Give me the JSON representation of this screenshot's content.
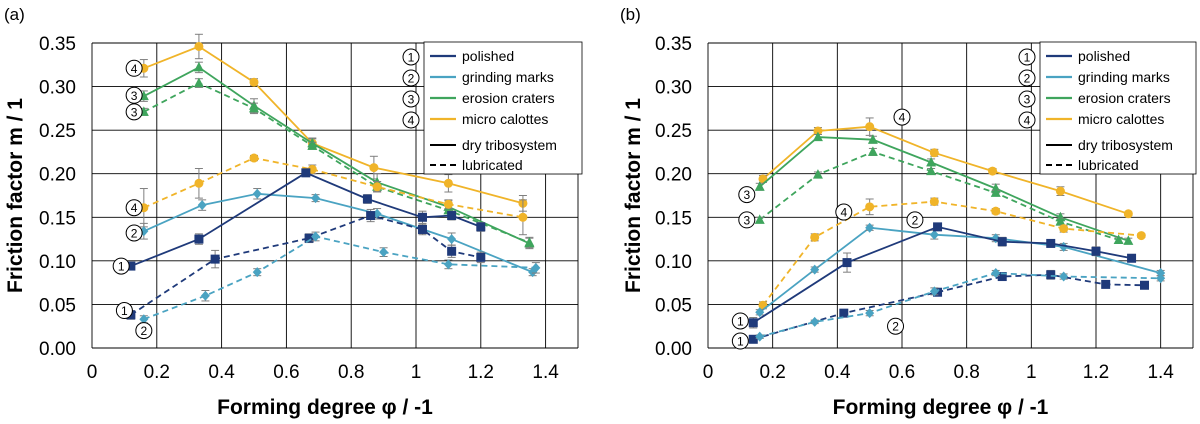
{
  "colors": {
    "polished": "#1f3a7a",
    "grinding": "#4aa3c2",
    "erosion": "#3fa55d",
    "calottes": "#f0b429",
    "grid": "#000000",
    "error": "#7f7f7f"
  },
  "chart_data": [
    {
      "type": "line",
      "panel_label": "(a)",
      "xlabel": "Forming degree φ / -1",
      "ylabel": "Friction factor m / 1",
      "xlim": [
        0,
        1.5
      ],
      "ylim": [
        0,
        0.35
      ],
      "xticks": [
        "0",
        "0.2",
        "0.4",
        "0.6",
        "0.8",
        "1",
        "1.2",
        "1.4"
      ],
      "yticks": [
        "0.00",
        "0.05",
        "0.10",
        "0.15",
        "0.20",
        "0.25",
        "0.30",
        "0.35"
      ],
      "legend": {
        "position": "top-right",
        "entries": [
          "polished",
          "grinding marks",
          "erosion craters",
          "micro calottes"
        ],
        "numbers": [
          "1",
          "2",
          "3",
          "4"
        ],
        "style_entries": [
          "dry tribosystem",
          "lubricated"
        ]
      },
      "series": [
        {
          "name": "micro calottes",
          "condition": "dry tribosystem",
          "color_key": "calottes",
          "marker": "circle",
          "x": [
            0.16,
            0.33,
            0.5,
            0.68,
            0.87,
            1.1,
            1.33
          ],
          "y": [
            0.321,
            0.346,
            0.305,
            0.235,
            0.207,
            0.189,
            0.166
          ],
          "err": [
            0.01,
            0.014,
            0.004,
            0.006,
            0.013,
            0.01,
            0.009
          ]
        },
        {
          "name": "erosion craters",
          "condition": "dry tribosystem",
          "color_key": "erosion",
          "marker": "triangle",
          "x": [
            0.16,
            0.33,
            0.5,
            0.68,
            0.88,
            1.1,
            1.35
          ],
          "y": [
            0.289,
            0.322,
            0.278,
            0.235,
            0.19,
            0.162,
            0.12
          ],
          "err": [
            0.006,
            0.006,
            0.008,
            0.005,
            0.01,
            0.007,
            0.006
          ]
        },
        {
          "name": "erosion craters",
          "condition": "lubricated",
          "color_key": "erosion",
          "marker": "triangle",
          "x": [
            0.16,
            0.33,
            0.5,
            0.68,
            0.88,
            1.1,
            1.35
          ],
          "y": [
            0.271,
            0.304,
            0.275,
            0.232,
            0.185,
            0.158,
            0.121
          ],
          "err": [
            0.004,
            0.005,
            0.006,
            0.004,
            0.006,
            0.006,
            0.006
          ]
        },
        {
          "name": "micro calottes",
          "condition": "lubricated",
          "color_key": "calottes",
          "marker": "circle",
          "x": [
            0.16,
            0.33,
            0.5,
            0.68,
            0.88,
            1.1,
            1.33
          ],
          "y": [
            0.161,
            0.189,
            0.218,
            0.205,
            0.185,
            0.165,
            0.15
          ],
          "err": [
            0.022,
            0.017,
            0.003,
            0.005,
            0.006,
            0.005,
            0.02
          ]
        },
        {
          "name": "grinding marks",
          "condition": "dry tribosystem",
          "color_key": "grinding",
          "marker": "diamond",
          "x": [
            0.16,
            0.34,
            0.51,
            0.69,
            0.88,
            1.11,
            1.36
          ],
          "y": [
            0.134,
            0.164,
            0.177,
            0.172,
            0.154,
            0.125,
            0.087
          ],
          "err": [
            0.009,
            0.006,
            0.006,
            0.004,
            0.006,
            0.007,
            0.004
          ]
        },
        {
          "name": "polished",
          "condition": "dry tribosystem",
          "color_key": "polished",
          "marker": "square",
          "x": [
            0.12,
            0.33,
            0.66,
            0.85,
            1.02,
            1.11,
            1.2
          ],
          "y": [
            0.094,
            0.125,
            0.201,
            0.171,
            0.15,
            0.152,
            0.139
          ],
          "err": [
            0.004,
            0.006,
            0.003,
            0.005,
            0.007,
            0.005,
            0.005
          ]
        },
        {
          "name": "polished",
          "condition": "lubricated",
          "color_key": "polished",
          "marker": "square",
          "x": [
            0.12,
            0.38,
            0.67,
            0.86,
            1.02,
            1.11,
            1.2
          ],
          "y": [
            0.038,
            0.102,
            0.126,
            0.152,
            0.136,
            0.111,
            0.104
          ],
          "err": [
            0.005,
            0.01,
            0.005,
            0.007,
            0.006,
            0.007,
            0.006
          ]
        },
        {
          "name": "grinding marks",
          "condition": "lubricated",
          "color_key": "grinding",
          "marker": "diamond",
          "x": [
            0.16,
            0.35,
            0.51,
            0.69,
            0.9,
            1.1,
            1.37
          ],
          "y": [
            0.033,
            0.06,
            0.087,
            0.128,
            0.11,
            0.096,
            0.092
          ],
          "err": [
            0.004,
            0.006,
            0.004,
            0.005,
            0.005,
            0.005,
            0.006
          ]
        }
      ],
      "annotations": [
        {
          "text": "4",
          "x": 0.13,
          "y": 0.321
        },
        {
          "text": "3",
          "x": 0.13,
          "y": 0.29
        },
        {
          "text": "3",
          "x": 0.13,
          "y": 0.271
        },
        {
          "text": "4",
          "x": 0.13,
          "y": 0.161
        },
        {
          "text": "2",
          "x": 0.13,
          "y": 0.132
        },
        {
          "text": "1",
          "x": 0.09,
          "y": 0.094
        },
        {
          "text": "1",
          "x": 0.1,
          "y": 0.043
        },
        {
          "text": "2",
          "x": 0.16,
          "y": 0.02
        }
      ]
    },
    {
      "type": "line",
      "panel_label": "(b)",
      "xlabel": "Forming degree φ / -1",
      "ylabel": "Friction factor m / 1",
      "xlim": [
        0,
        1.5
      ],
      "ylim": [
        0,
        0.35
      ],
      "xticks": [
        "0",
        "0.2",
        "0.4",
        "0.6",
        "0.8",
        "1",
        "1.2",
        "1.4"
      ],
      "yticks": [
        "0.00",
        "0.05",
        "0.10",
        "0.15",
        "0.20",
        "0.25",
        "0.30",
        "0.35"
      ],
      "legend": {
        "position": "top-right",
        "entries": [
          "polished",
          "grinding marks",
          "erosion craters",
          "micro calottes"
        ],
        "numbers": [
          "1",
          "2",
          "3",
          "4"
        ],
        "style_entries": [
          "dry tribosystem",
          "lubricated"
        ]
      },
      "series": [
        {
          "name": "micro calottes",
          "condition": "dry tribosystem",
          "color_key": "calottes",
          "marker": "circle",
          "x": [
            0.17,
            0.34,
            0.5,
            0.7,
            0.88,
            1.09,
            1.3
          ],
          "y": [
            0.194,
            0.249,
            0.254,
            0.224,
            0.203,
            0.18,
            0.154
          ],
          "err": [
            0.004,
            0.004,
            0.01,
            0.004,
            0.003,
            0.005,
            0.002
          ]
        },
        {
          "name": "erosion craters",
          "condition": "dry tribosystem",
          "color_key": "erosion",
          "marker": "triangle",
          "x": [
            0.16,
            0.34,
            0.51,
            0.69,
            0.89,
            1.09,
            1.3
          ],
          "y": [
            0.185,
            0.242,
            0.239,
            0.213,
            0.183,
            0.15,
            0.123
          ],
          "err": [
            0.004,
            0.003,
            0.004,
            0.004,
            0.005,
            0.004,
            0.003
          ]
        },
        {
          "name": "erosion craters",
          "condition": "lubricated",
          "color_key": "erosion",
          "marker": "triangle",
          "x": [
            0.16,
            0.34,
            0.51,
            0.69,
            0.89,
            1.09,
            1.27
          ],
          "y": [
            0.147,
            0.199,
            0.225,
            0.203,
            0.178,
            0.145,
            0.124
          ],
          "err": [
            0.003,
            0.003,
            0.004,
            0.003,
            0.003,
            0.004,
            0.003
          ]
        },
        {
          "name": "micro calottes",
          "condition": "lubricated",
          "color_key": "calottes",
          "marker": "circle",
          "x": [
            0.17,
            0.33,
            0.5,
            0.7,
            0.89,
            1.1,
            1.34
          ],
          "y": [
            0.049,
            0.127,
            0.162,
            0.168,
            0.157,
            0.137,
            0.129
          ],
          "err": [
            0.004,
            0.004,
            0.009,
            0.004,
            0.003,
            0.004,
            0.002
          ]
        },
        {
          "name": "grinding marks",
          "condition": "dry tribosystem",
          "color_key": "grinding",
          "marker": "diamond",
          "x": [
            0.16,
            0.33,
            0.5,
            0.7,
            0.89,
            1.1,
            1.4
          ],
          "y": [
            0.041,
            0.09,
            0.138,
            0.13,
            0.126,
            0.116,
            0.086
          ],
          "err": [
            0.003,
            0.003,
            0.003,
            0.005,
            0.004,
            0.004,
            0.003
          ]
        },
        {
          "name": "polished",
          "condition": "dry tribosystem",
          "color_key": "polished",
          "marker": "square",
          "x": [
            0.14,
            0.43,
            0.71,
            0.91,
            1.06,
            1.2,
            1.31
          ],
          "y": [
            0.029,
            0.098,
            0.139,
            0.122,
            0.12,
            0.111,
            0.103
          ],
          "err": [
            0.006,
            0.011,
            0.004,
            0.005,
            0.004,
            0.005,
            0.004
          ]
        },
        {
          "name": "polished",
          "condition": "lubricated",
          "color_key": "polished",
          "marker": "square",
          "x": [
            0.14,
            0.42,
            0.71,
            0.91,
            1.06,
            1.23,
            1.35
          ],
          "y": [
            0.01,
            0.04,
            0.064,
            0.082,
            0.084,
            0.073,
            0.072
          ],
          "err": [
            0.003,
            0.004,
            0.004,
            0.004,
            0.005,
            0.004,
            0.004
          ]
        },
        {
          "name": "grinding marks",
          "condition": "lubricated",
          "color_key": "grinding",
          "marker": "diamond",
          "x": [
            0.16,
            0.33,
            0.5,
            0.7,
            0.89,
            1.1,
            1.4
          ],
          "y": [
            0.013,
            0.03,
            0.04,
            0.065,
            0.086,
            0.082,
            0.08
          ],
          "err": [
            0.002,
            0.002,
            0.003,
            0.004,
            0.003,
            0.003,
            0.003
          ]
        }
      ],
      "annotations": [
        {
          "text": "3",
          "x": 0.12,
          "y": 0.176
        },
        {
          "text": "3",
          "x": 0.12,
          "y": 0.147
        },
        {
          "text": "4",
          "x": 0.42,
          "y": 0.156
        },
        {
          "text": "2",
          "x": 0.64,
          "y": 0.147
        },
        {
          "text": "4",
          "x": 0.6,
          "y": 0.265
        },
        {
          "text": "1",
          "x": 0.1,
          "y": 0.031
        },
        {
          "text": "1",
          "x": 0.1,
          "y": 0.008
        },
        {
          "text": "2",
          "x": 0.58,
          "y": 0.025
        }
      ]
    }
  ]
}
